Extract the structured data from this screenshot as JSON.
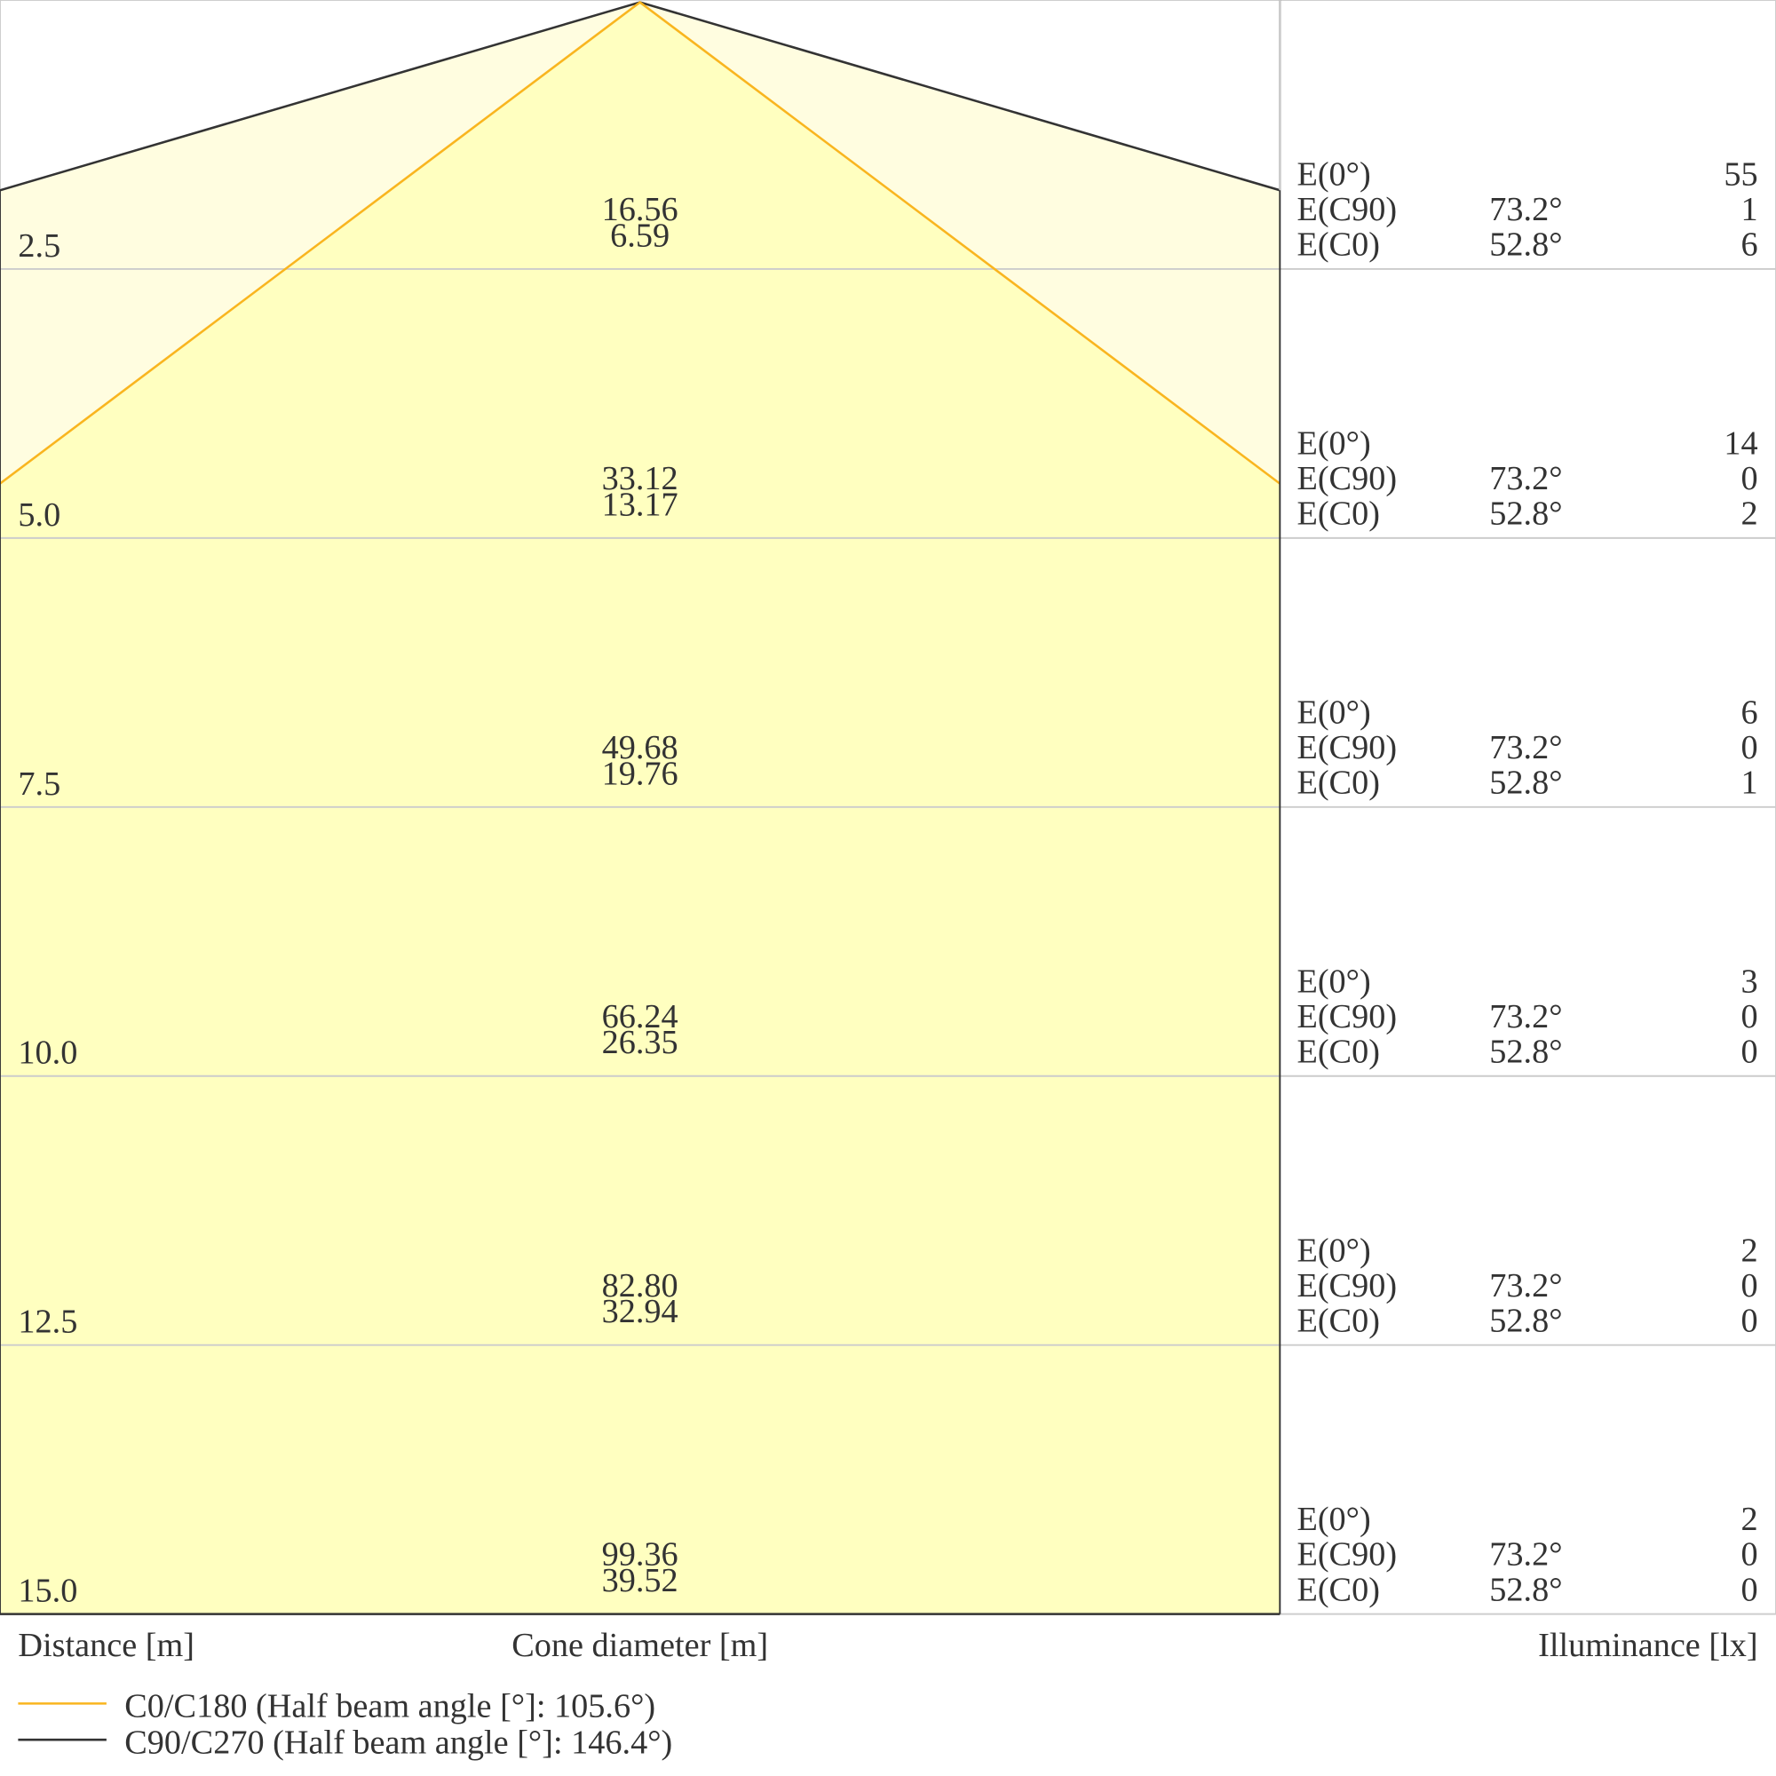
{
  "labels": {
    "distance": "Distance [m]",
    "cone": "Cone diameter [m]",
    "illuminance": "Illuminance [lx]"
  },
  "row_labels": [
    "E(0°)",
    "E(C90)",
    "E(C0)"
  ],
  "legend": [
    "C0/C180 (Half beam angle [°]: 105.6°)",
    "C90/C270 (Half beam angle [°]: 146.4°)"
  ],
  "rows": [
    {
      "distance": "2.5",
      "cone_c90": "16.56",
      "cone_c0": "6.59",
      "e0": "55",
      "ec90_angle": "73.2°",
      "ec90": "1",
      "ec0_angle": "52.8°",
      "ec0": "6"
    },
    {
      "distance": "5.0",
      "cone_c90": "33.12",
      "cone_c0": "13.17",
      "e0": "14",
      "ec90_angle": "73.2°",
      "ec90": "0",
      "ec0_angle": "52.8°",
      "ec0": "2"
    },
    {
      "distance": "7.5",
      "cone_c90": "49.68",
      "cone_c0": "19.76",
      "e0": "6",
      "ec90_angle": "73.2°",
      "ec90": "0",
      "ec0_angle": "52.8°",
      "ec0": "1"
    },
    {
      "distance": "10.0",
      "cone_c90": "66.24",
      "cone_c0": "26.35",
      "e0": "3",
      "ec90_angle": "73.2°",
      "ec90": "0",
      "ec0_angle": "52.8°",
      "ec0": "0"
    },
    {
      "distance": "12.5",
      "cone_c90": "82.80",
      "cone_c0": "32.94",
      "e0": "2",
      "ec90_angle": "73.2°",
      "ec90": "0",
      "ec0_angle": "52.8°",
      "ec0": "0"
    },
    {
      "distance": "15.0",
      "cone_c90": "99.36",
      "cone_c0": "39.52",
      "e0": "2",
      "ec90_angle": "73.2°",
      "ec90": "0",
      "ec0_angle": "52.8°",
      "ec0": "0"
    }
  ]
}
